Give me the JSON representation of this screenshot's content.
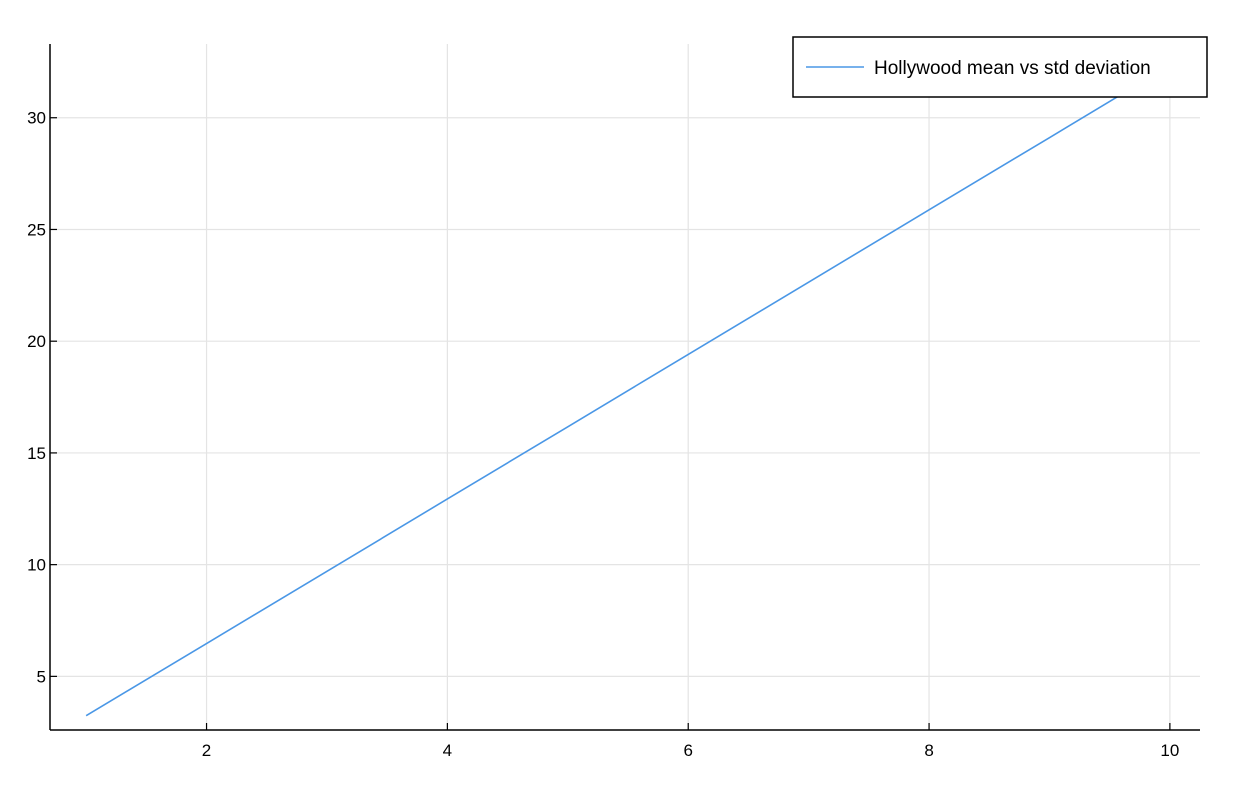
{
  "chart_data": {
    "type": "line",
    "title": "",
    "xlabel": "",
    "ylabel": "",
    "xlim": [
      0.7,
      10.25
    ],
    "ylim": [
      2.6,
      33.3
    ],
    "x_ticks": [
      2,
      4,
      6,
      8,
      10
    ],
    "y_ticks": [
      5,
      10,
      15,
      20,
      25,
      30
    ],
    "grid": true,
    "legend_position": "top-right",
    "series": [
      {
        "name": "Hollywood mean vs std deviation",
        "color": "#4a97e6",
        "x": [
          1,
          2,
          3,
          4,
          5,
          6,
          7,
          8,
          9,
          10
        ],
        "y": [
          3.24,
          6.47,
          9.7,
          12.94,
          16.17,
          19.41,
          22.64,
          25.88,
          29.11,
          32.35
        ]
      }
    ]
  },
  "colors": {
    "axis": "#000000",
    "grid": "#e4e4e4",
    "background": "#ffffff"
  }
}
